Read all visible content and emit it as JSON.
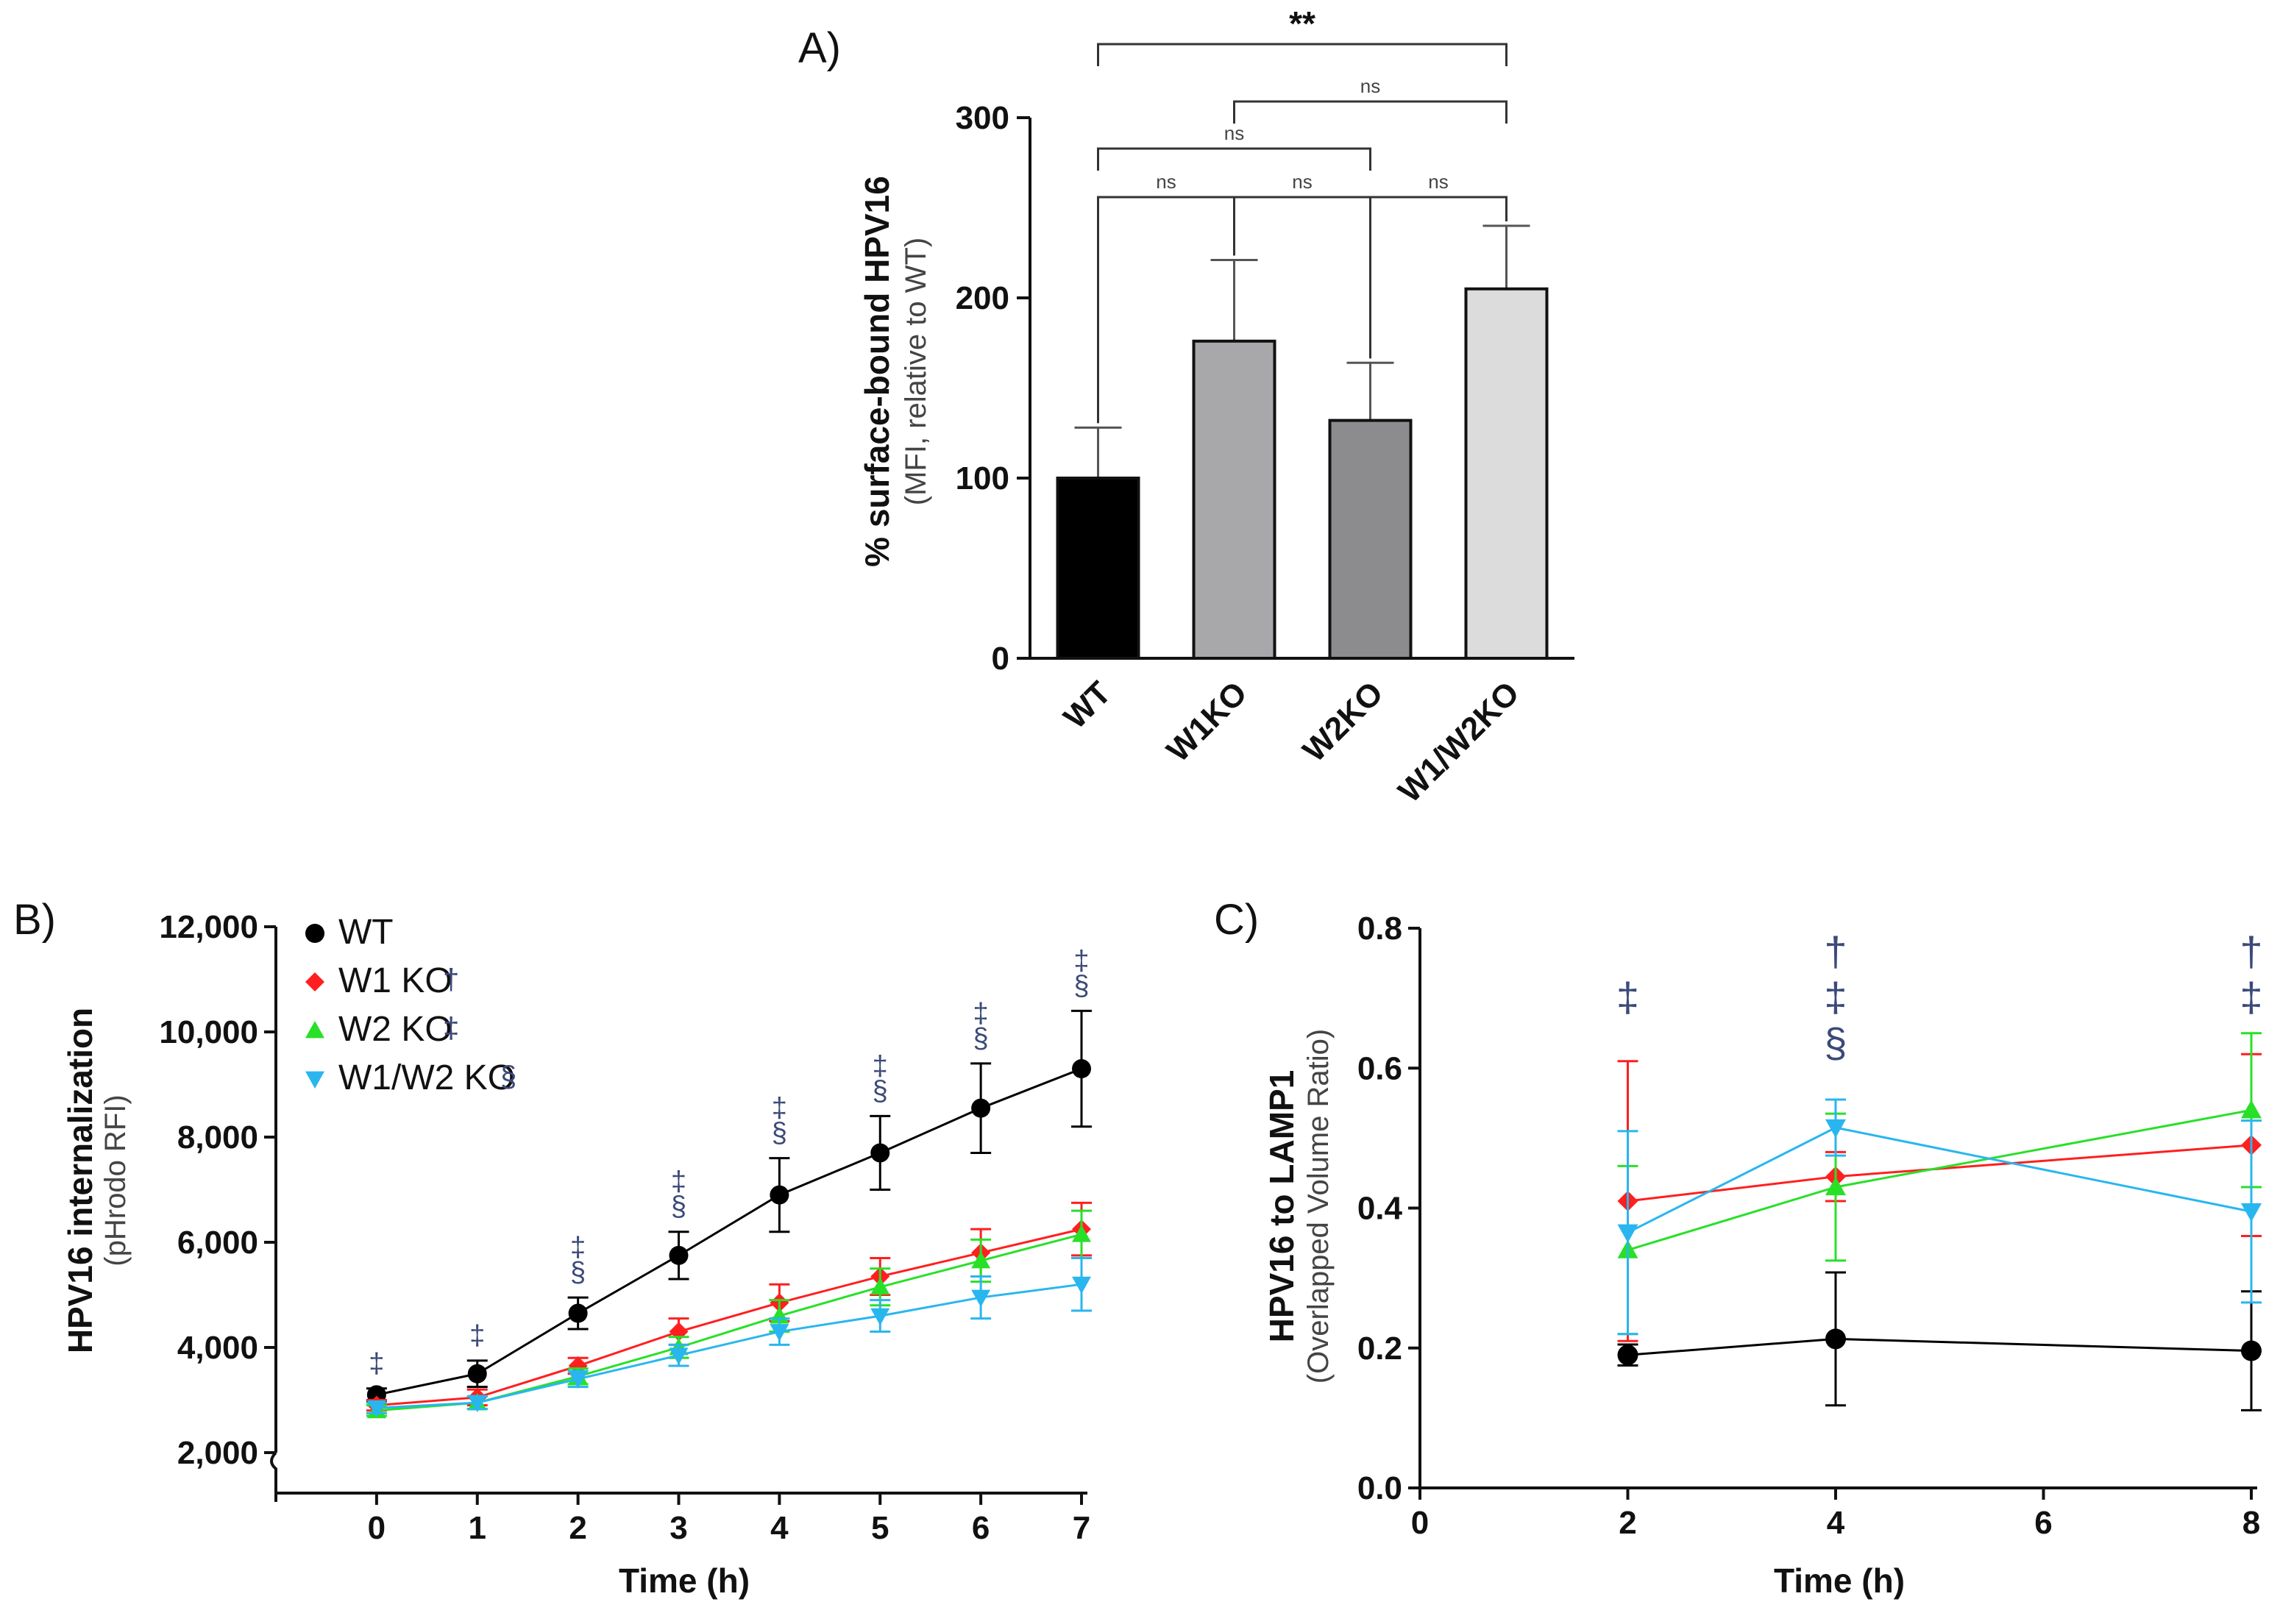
{
  "chart_data": [
    {
      "panel": "A)",
      "type": "bar",
      "ylabel": "% surface-bound HPV16",
      "ylabel_sub": "(MFI, relative to WT)",
      "ylim": [
        0,
        300
      ],
      "yticks": [
        "0",
        "100",
        "200",
        "300"
      ],
      "categories": [
        "WT",
        "W1KO",
        "W2KO",
        "W1/W2KO"
      ],
      "values": [
        100,
        176,
        132,
        205
      ],
      "errors": [
        28,
        45,
        32,
        35
      ],
      "colors": [
        "#000000",
        "#a8a8aa",
        "#8c8c8e",
        "#dcdcdc"
      ],
      "comparisons": [
        {
          "from": "WT",
          "to": "W1/W2KO",
          "label": "**"
        },
        {
          "from": "W1KO",
          "to": "W1/W2KO",
          "label": "ns"
        },
        {
          "from": "WT",
          "to": "W2KO",
          "label": "ns"
        },
        {
          "from": "WT",
          "to": "W1KO",
          "label": "ns"
        },
        {
          "from": "W1KO",
          "to": "W2KO",
          "label": "ns"
        },
        {
          "from": "W2KO",
          "to": "W1/W2KO",
          "label": "ns"
        }
      ]
    },
    {
      "panel": "B)",
      "type": "line",
      "xlabel": "Time (h)",
      "ylabel": "HPV16 internalization",
      "ylabel_sub": "(pHrodo RFI)",
      "x": [
        0,
        1,
        2,
        3,
        4,
        5,
        6,
        7
      ],
      "xlim": [
        -1,
        7
      ],
      "ylim": [
        2000,
        12000
      ],
      "xticks": [
        "0",
        "1",
        "2",
        "3",
        "4",
        "5",
        "6",
        "7"
      ],
      "yticks": [
        "2,000",
        "4,000",
        "6,000",
        "8,000",
        "10,000",
        "12,000"
      ],
      "series": [
        {
          "name": "WT",
          "color": "#000000",
          "marker": "circle",
          "legend_symbol": "",
          "values": [
            3100,
            3500,
            4650,
            5750,
            6900,
            7700,
            8550,
            9300
          ],
          "errors": [
            120,
            250,
            300,
            450,
            700,
            700,
            850,
            1100
          ]
        },
        {
          "name": "W1 KO",
          "color": "#ff1f1f",
          "marker": "diamond",
          "legend_symbol": "†",
          "values": [
            2900,
            3050,
            3650,
            4300,
            4850,
            5350,
            5800,
            6250
          ],
          "errors": [
            100,
            150,
            150,
            250,
            350,
            350,
            450,
            500
          ]
        },
        {
          "name": "W2 KO",
          "color": "#28e028",
          "marker": "triangle-up",
          "legend_symbol": "‡",
          "values": [
            2800,
            2950,
            3450,
            4000,
            4600,
            5150,
            5650,
            6150
          ],
          "errors": [
            100,
            120,
            150,
            200,
            300,
            350,
            400,
            450
          ]
        },
        {
          "name": "W1/W2 KO",
          "color": "#29b6ef",
          "marker": "triangle-down",
          "legend_symbol": "§",
          "values": [
            2850,
            2950,
            3400,
            3850,
            4300,
            4600,
            4950,
            5200
          ],
          "errors": [
            100,
            120,
            150,
            200,
            250,
            300,
            400,
            500
          ]
        }
      ],
      "annotations": [
        {
          "x": 0,
          "symbols": [
            "‡"
          ]
        },
        {
          "x": 1,
          "symbols": [
            "‡"
          ]
        },
        {
          "x": 2,
          "symbols": [
            "‡",
            "§"
          ]
        },
        {
          "x": 3,
          "symbols": [
            "‡",
            "§"
          ]
        },
        {
          "x": 4,
          "symbols": [
            "‡",
            "§"
          ]
        },
        {
          "x": 5,
          "symbols": [
            "‡",
            "§"
          ]
        },
        {
          "x": 6,
          "symbols": [
            "‡",
            "§"
          ]
        },
        {
          "x": 7,
          "symbols": [
            "‡",
            "§"
          ]
        }
      ]
    },
    {
      "panel": "C)",
      "type": "line",
      "xlabel": "Time (h)",
      "ylabel": "HPV16 to LAMP1",
      "ylabel_sub": "(Overlapped Volume Ratio)",
      "x": [
        2,
        4,
        8
      ],
      "xlim": [
        0,
        8
      ],
      "ylim": [
        0,
        0.8
      ],
      "xticks": [
        "0",
        "2",
        "4",
        "6",
        "8"
      ],
      "yticks": [
        "0.0",
        "0.2",
        "0.4",
        "0.6",
        "0.8"
      ],
      "series": [
        {
          "name": "WT",
          "color": "#000000",
          "marker": "circle",
          "values": [
            0.19,
            0.213,
            0.196
          ],
          "errors": [
            0.015,
            0.095,
            0.085
          ]
        },
        {
          "name": "W1 KO",
          "color": "#ff1f1f",
          "marker": "diamond",
          "values": [
            0.41,
            0.445,
            0.49
          ],
          "errors": [
            0.2,
            0.035,
            0.13
          ]
        },
        {
          "name": "W2 KO",
          "color": "#28e028",
          "marker": "triangle-up",
          "values": [
            0.34,
            0.43,
            0.54
          ],
          "errors": [
            0.12,
            0.105,
            0.11
          ]
        },
        {
          "name": "W1/W2 KO",
          "color": "#29b6ef",
          "marker": "triangle-down",
          "values": [
            0.365,
            0.515,
            0.395
          ],
          "errors": [
            0.145,
            0.04,
            0.13
          ]
        }
      ],
      "annotations": [
        {
          "x": 2,
          "symbols": [
            "‡"
          ]
        },
        {
          "x": 4,
          "symbols": [
            "†",
            "‡",
            "§"
          ]
        },
        {
          "x": 8,
          "symbols": [
            "†",
            "‡"
          ]
        }
      ]
    }
  ]
}
